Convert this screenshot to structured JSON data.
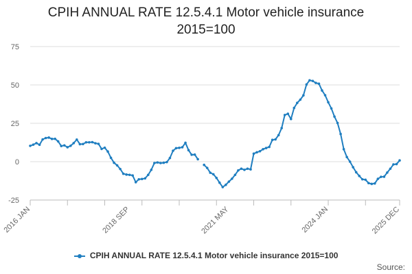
{
  "title_line1": "CPIH ANNUAL RATE 12.5.4.1 Motor vehicle insurance",
  "title_line2": "2015=100",
  "legend_label": "CPIH ANNUAL RATE 12.5.4.1 Motor vehicle insurance 2015=100",
  "source_label": "Source:",
  "series_color": "#1f7ec0",
  "chart_data": {
    "type": "line",
    "title": "CPIH ANNUAL RATE 12.5.4.1 Motor vehicle insurance 2015=100",
    "xlabel": "",
    "ylabel": "",
    "ylim": [
      -25,
      75
    ],
    "yticks": [
      -25,
      0,
      25,
      50,
      75
    ],
    "xtick_labels": [
      "2016 JAN",
      "2018 SEP",
      "2021 MAY",
      "2024 JAN",
      "2025 DEC"
    ],
    "xtick_indices": [
      0,
      32,
      64,
      96,
      119
    ],
    "grid": true,
    "legend_position": "bottom",
    "series": [
      {
        "name": "CPIH ANNUAL RATE 12.5.4.1 Motor vehicle insurance 2015=100",
        "start": "2016 JAN",
        "end": "2025 DEC",
        "values": [
          10.3,
          11.1,
          12.1,
          11.0,
          14.5,
          15.4,
          15.7,
          14.8,
          14.9,
          13.2,
          10.2,
          10.6,
          9.4,
          10.3,
          12.1,
          14.4,
          11.4,
          11.5,
          12.6,
          12.6,
          12.7,
          12.0,
          11.6,
          8.3,
          9.1,
          6.6,
          2.5,
          -0.7,
          -2.4,
          -4.8,
          -7.9,
          -8.4,
          -8.6,
          -9.0,
          -13.4,
          -11.5,
          -11.3,
          -10.9,
          -8.6,
          -5.3,
          -0.9,
          -0.5,
          -0.9,
          -0.7,
          -0.3,
          2.4,
          7.1,
          8.8,
          9.0,
          9.4,
          12.3,
          7.5,
          4.5,
          4.6,
          1.6,
          null,
          -2.1,
          -4.1,
          -7.2,
          -8.2,
          -10.6,
          -13.7,
          -16.6,
          -15.1,
          -13.0,
          -11.1,
          -8.6,
          -5.7,
          -4.6,
          -5.3,
          -4.6,
          -5.0,
          5.2,
          6.1,
          6.8,
          8.1,
          8.9,
          9.6,
          14.2,
          14.5,
          17.3,
          21.9,
          30.4,
          31.2,
          27.8,
          35.0,
          38.3,
          40.4,
          43.2,
          50.3,
          53.0,
          52.6,
          51.3,
          50.8,
          46.4,
          43.3,
          38.7,
          34.7,
          29.4,
          25.2,
          18.0,
          8.1,
          3.0,
          0.0,
          -3.6,
          -6.9,
          -9.3,
          -11.5,
          -11.8,
          -14.0,
          -14.5,
          -14.2,
          -11.2,
          -9.9,
          -9.8,
          -7.1,
          -4.6,
          -1.8,
          -1.6,
          0.8
        ]
      }
    ]
  }
}
